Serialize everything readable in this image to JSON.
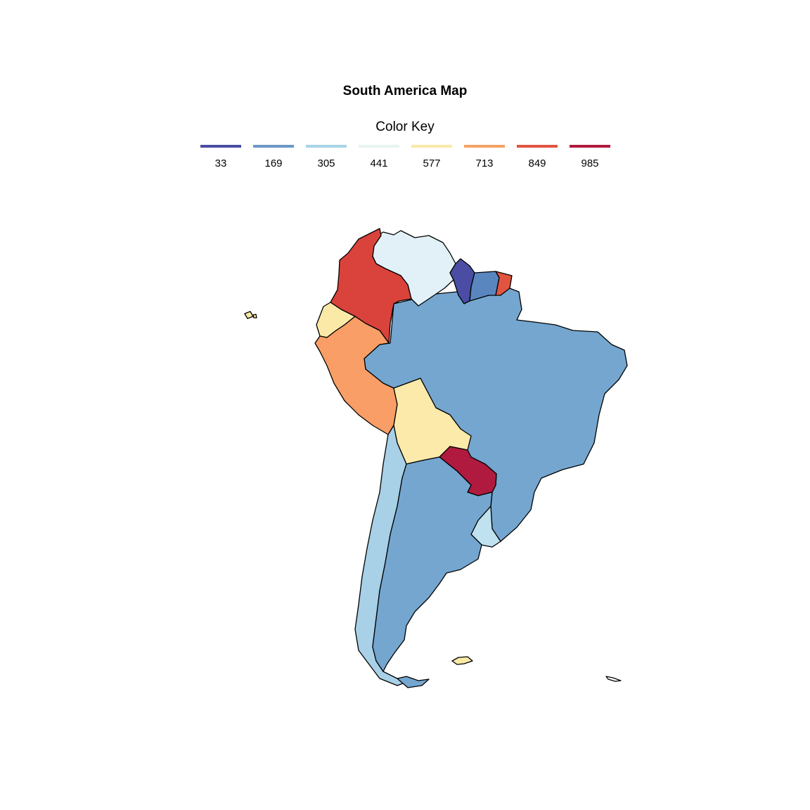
{
  "title": "South America Map",
  "legend": {
    "title": "Color Key",
    "items": [
      {
        "label": "33",
        "color": "#4a4da3"
      },
      {
        "label": "169",
        "color": "#6b97c6"
      },
      {
        "label": "305",
        "color": "#a8d4e9"
      },
      {
        "label": "441",
        "color": "#e7f4ef"
      },
      {
        "label": "577",
        "color": "#fbe9a7"
      },
      {
        "label": "713",
        "color": "#f6a264"
      },
      {
        "label": "849",
        "color": "#e1543f"
      },
      {
        "label": "985",
        "color": "#b01a3e"
      }
    ]
  },
  "countries": [
    {
      "name": "Colombia",
      "color": "#d9433b"
    },
    {
      "name": "Venezuela",
      "color": "#e1f1f7"
    },
    {
      "name": "Guyana",
      "color": "#4a4da3"
    },
    {
      "name": "Suriname",
      "color": "#5a86bf"
    },
    {
      "name": "French Guiana",
      "color": "#e1543f"
    },
    {
      "name": "Ecuador",
      "color": "#fbe9a7"
    },
    {
      "name": "Peru",
      "color": "#f89e66"
    },
    {
      "name": "Brazil",
      "color": "#74a6cf"
    },
    {
      "name": "Bolivia",
      "color": "#fceaab"
    },
    {
      "name": "Paraguay",
      "color": "#b01a3e"
    },
    {
      "name": "Uruguay",
      "color": "#c0e1ef"
    },
    {
      "name": "Chile",
      "color": "#a8d0e6"
    },
    {
      "name": "Argentina",
      "color": "#74a6cf"
    },
    {
      "name": "Falkland Islands",
      "color": "#fbe9a7"
    }
  ]
}
